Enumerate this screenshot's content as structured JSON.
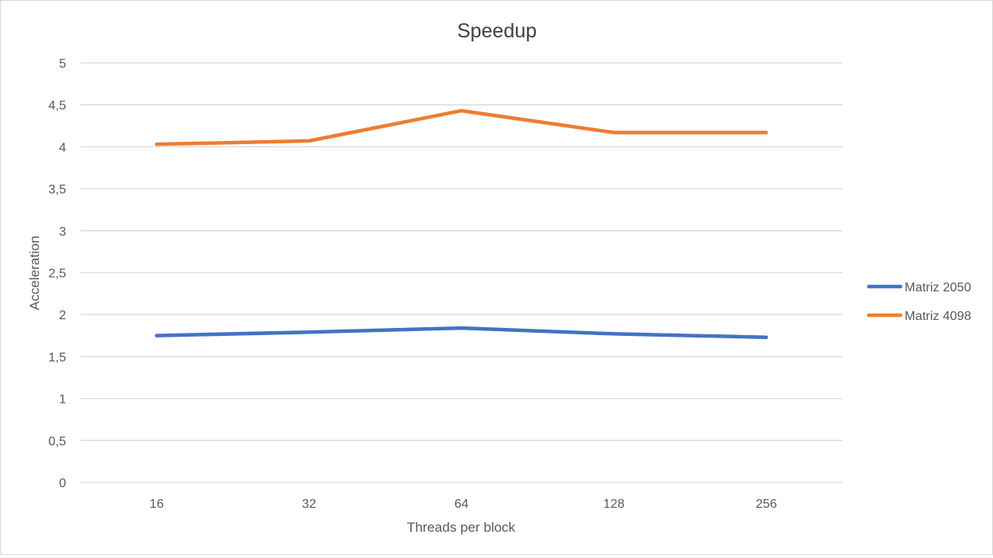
{
  "chart_data": {
    "type": "line",
    "title": "Speedup",
    "xlabel": "Threads per block",
    "ylabel": "Acceleration",
    "categories": [
      "16",
      "32",
      "64",
      "128",
      "256"
    ],
    "ylim": [
      0,
      5
    ],
    "yticks": [
      0,
      0.5,
      1,
      1.5,
      2,
      2.5,
      3,
      3.5,
      4,
      4.5,
      5
    ],
    "ytick_labels": [
      "0",
      "0,5",
      "1",
      "1,5",
      "2",
      "2,5",
      "3",
      "3,5",
      "4",
      "4,5",
      "5"
    ],
    "grid": true,
    "legend_position": "right",
    "series": [
      {
        "name": "Matriz 2050",
        "color": "#4472C4",
        "values": [
          1.75,
          1.79,
          1.84,
          1.77,
          1.73
        ]
      },
      {
        "name": "Matriz 4098",
        "color": "#ED7D31",
        "values": [
          4.03,
          4.07,
          4.43,
          4.17,
          4.17
        ]
      }
    ]
  }
}
